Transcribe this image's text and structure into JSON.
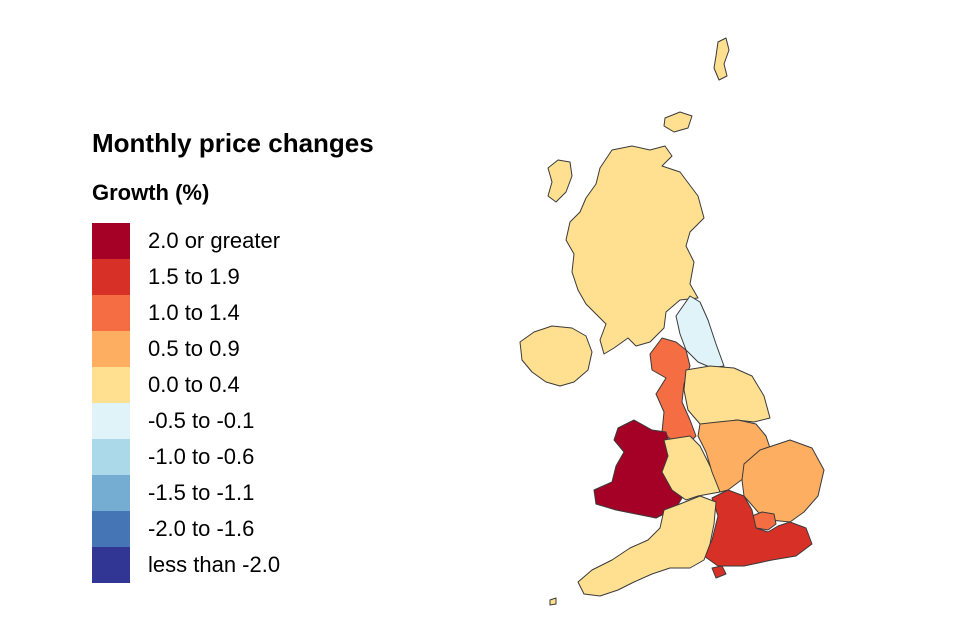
{
  "legend": {
    "title": "Monthly price changes",
    "subtitle": "Growth (%)",
    "items": [
      {
        "label": "2.0 or greater",
        "color": "#a50026"
      },
      {
        "label": "1.5 to 1.9",
        "color": "#d73027"
      },
      {
        "label": "1.0 to 1.4",
        "color": "#f46d43"
      },
      {
        "label": "0.5 to 0.9",
        "color": "#fdae61"
      },
      {
        "label": "0.0 to 0.4",
        "color": "#fee090"
      },
      {
        "label": "-0.5 to -0.1",
        "color": "#e0f3f8"
      },
      {
        "label": "-1.0 to -0.6",
        "color": "#abd9e9"
      },
      {
        "label": "-1.5 to -1.1",
        "color": "#74add1"
      },
      {
        "label": "-2.0 to -1.6",
        "color": "#4575b4"
      },
      {
        "label": "less than -2.0",
        "color": "#313695"
      }
    ]
  },
  "regions": [
    {
      "id": "scotland",
      "name": "Scotland",
      "band": "0.0 to 0.4",
      "color": "#fee090"
    },
    {
      "id": "northern-ireland",
      "name": "Northern Ireland",
      "band": "0.0 to 0.4",
      "color": "#fee090"
    },
    {
      "id": "north-east",
      "name": "North East",
      "band": "-0.5 to -0.1",
      "color": "#e0f3f8"
    },
    {
      "id": "north-west",
      "name": "North West",
      "band": "1.0 to 1.4",
      "color": "#f46d43"
    },
    {
      "id": "yorkshire-humber",
      "name": "Yorkshire and The Humber",
      "band": "0.0 to 0.4",
      "color": "#fee090"
    },
    {
      "id": "wales",
      "name": "Wales",
      "band": "2.0 or greater",
      "color": "#a50026"
    },
    {
      "id": "west-midlands",
      "name": "West Midlands",
      "band": "0.0 to 0.4",
      "color": "#fee090"
    },
    {
      "id": "east-midlands",
      "name": "East Midlands",
      "band": "0.5 to 0.9",
      "color": "#fdae61"
    },
    {
      "id": "east-of-england",
      "name": "East of England",
      "band": "0.5 to 0.9",
      "color": "#fdae61"
    },
    {
      "id": "london",
      "name": "London",
      "band": "1.0 to 1.4",
      "color": "#f46d43"
    },
    {
      "id": "south-east",
      "name": "South East",
      "band": "1.5 to 1.9",
      "color": "#d73027"
    },
    {
      "id": "south-west",
      "name": "South West",
      "band": "0.0 to 0.4",
      "color": "#fee090"
    }
  ]
}
